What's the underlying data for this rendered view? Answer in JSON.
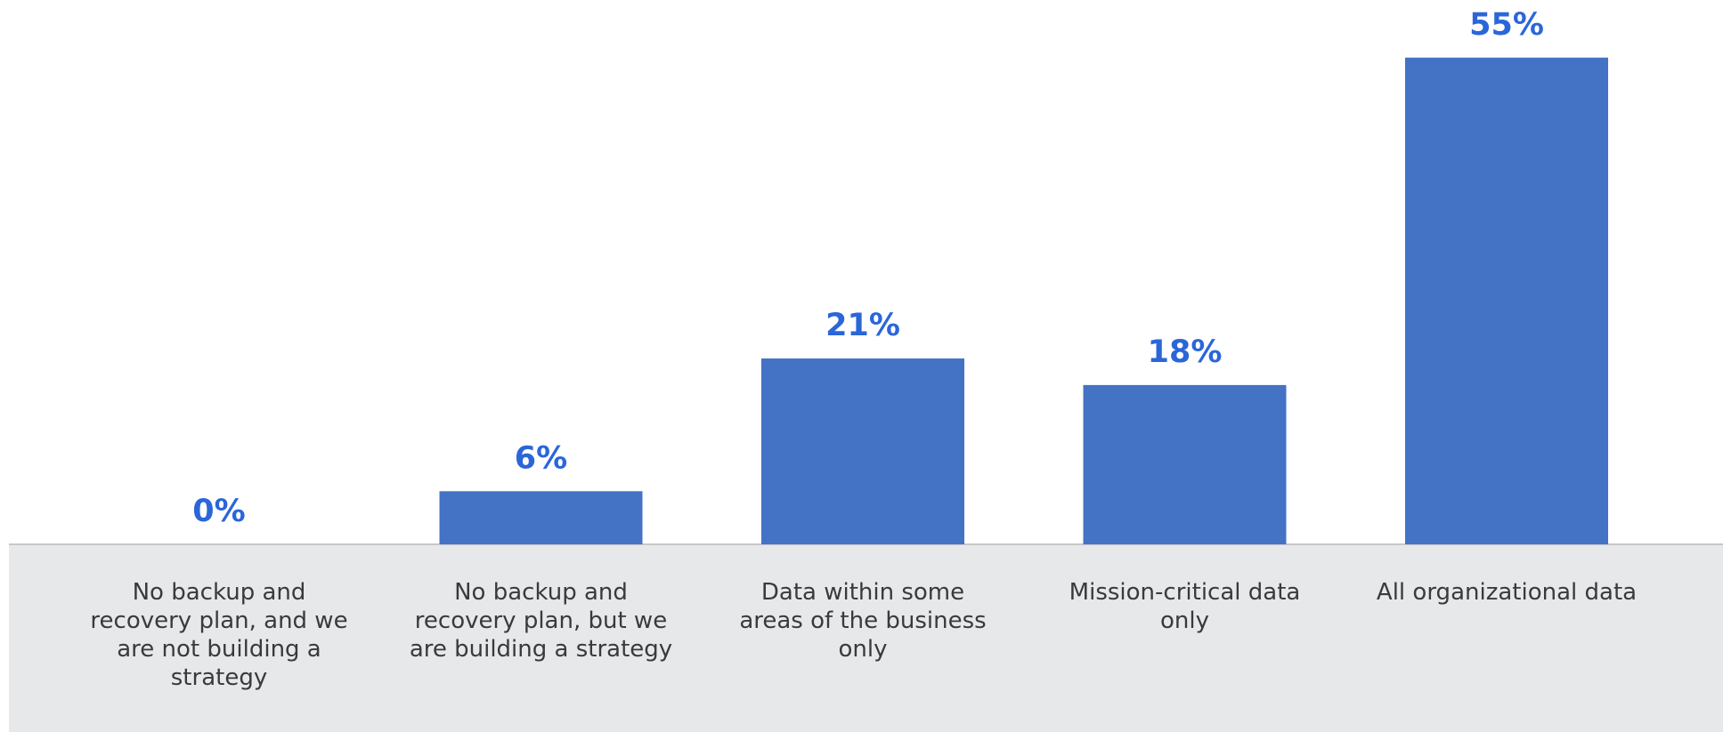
{
  "chart_data": {
    "type": "bar",
    "categories": [
      "No backup and recovery plan, and we are not building a strategy",
      "No backup and recovery plan, but we are building a strategy",
      "Data within some areas of the business only",
      "Mission-critical data only",
      "All organizational data"
    ],
    "values": [
      0,
      6,
      21,
      18,
      55
    ],
    "value_labels": [
      "0%",
      "6%",
      "21%",
      "18%",
      "55%"
    ],
    "color": "#4472c4"
  }
}
